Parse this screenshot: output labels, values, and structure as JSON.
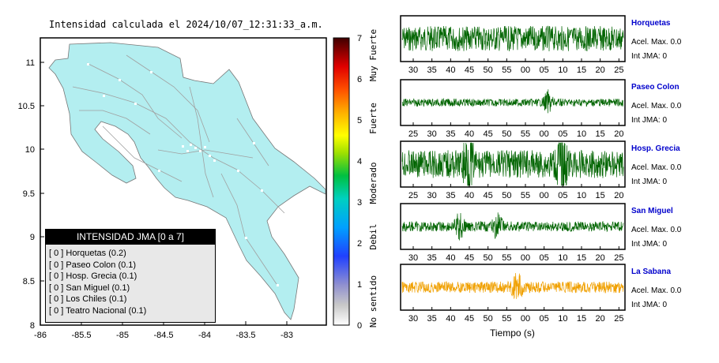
{
  "map": {
    "title": "Intensidad calculada el 2024/10/07_12:31:33_a.m.",
    "x_ticks": [
      "-86",
      "-85.5",
      "-85",
      "-84.5",
      "-84",
      "-83.5",
      "-83"
    ],
    "y_ticks": [
      "11",
      "10.5",
      "10",
      "9.5",
      "9",
      "8.5",
      "8"
    ],
    "land_color": "#b3eef0"
  },
  "colorbar": {
    "ticks": [
      "0",
      "1",
      "2",
      "3",
      "4",
      "5",
      "6",
      "7"
    ],
    "labels": [
      "No sentido",
      "Debil",
      "Moderado",
      "Fuerte",
      "Muy Fuerte"
    ]
  },
  "legend": {
    "title": "INTENSIDAD JMA [0 a 7]",
    "items": [
      "[ 0 ]  Horquetas (0.2)",
      "[ 0 ]  Paseo Colon (0.1)",
      "[ 0 ]  Hosp. Grecia (0.1)",
      "[ 0 ]  San Miguel (0.1)",
      "[ 0 ]  Los Chiles (0.1)",
      "[ 0 ]  Teatro Nacional (0.1)"
    ]
  },
  "stations": [
    {
      "name": "Horquetas",
      "accel": "Acel. Max. 0.0",
      "jma": "Int JMA: 0",
      "ticks": [
        "30",
        "35",
        "40",
        "45",
        "50",
        "55",
        "00",
        "05",
        "10",
        "15",
        "20",
        "25"
      ],
      "color": "#006400"
    },
    {
      "name": "Paseo Colon",
      "accel": "Acel. Max. 0.0",
      "jma": "Int JMA: 0",
      "ticks": [
        "25",
        "30",
        "35",
        "40",
        "45",
        "50",
        "55",
        "00",
        "05",
        "10",
        "15",
        "20"
      ],
      "color": "#006400"
    },
    {
      "name": "Hosp. Grecia",
      "accel": "Acel. Max. 0.0",
      "jma": "Int JMA: 0",
      "ticks": [
        "25",
        "30",
        "35",
        "40",
        "45",
        "50",
        "55",
        "00",
        "05",
        "10",
        "15",
        "20"
      ],
      "color": "#006400"
    },
    {
      "name": "San Miguel",
      "accel": "Acel. Max. 0.0",
      "jma": "Int JMA: 0",
      "ticks": [
        "30",
        "35",
        "40",
        "45",
        "50",
        "55",
        "00",
        "05",
        "10",
        "15",
        "20",
        "25"
      ],
      "color": "#006400"
    },
    {
      "name": "La Sabana",
      "accel": "Acel. Max. 0.0",
      "jma": "Int JMA: 0",
      "ticks": [
        "30",
        "35",
        "40",
        "45",
        "50",
        "55",
        "00",
        "05",
        "10",
        "15",
        "20",
        "25"
      ],
      "color": "#f0a000"
    }
  ],
  "seismo_xlabel": "Tiempo (s)"
}
